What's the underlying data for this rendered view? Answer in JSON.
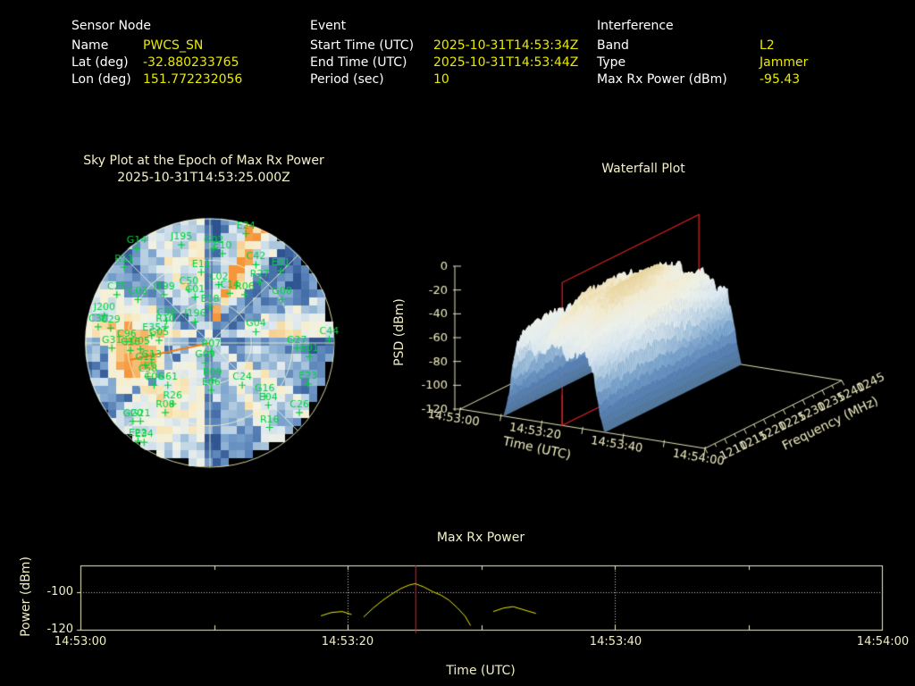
{
  "colors": {
    "background": "#000000",
    "header_label": "#ffffff",
    "header_value": "#e9e900",
    "plot_text": "#efedc2",
    "axis_line": "#efedc2",
    "data_line": "#e9e900",
    "marker_red": "#e02020",
    "satellite_green": "#00d23c",
    "pointer_orange": "#ee7d18",
    "grid_dotted_white": "#ffffff"
  },
  "header": {
    "columns": [
      {
        "title": "Sensor Node",
        "rows": [
          {
            "label": "Name",
            "value": "PWCS_SN"
          },
          {
            "label": "Lat (deg)",
            "value": "-32.880233765"
          },
          {
            "label": "Lon (deg)",
            "value": "151.772232056"
          }
        ]
      },
      {
        "title": "Event",
        "rows": [
          {
            "label": "Start Time (UTC)",
            "value": "2025-10-31T14:53:34Z"
          },
          {
            "label": "End Time (UTC)",
            "value": "2025-10-31T14:53:44Z"
          },
          {
            "label": "Period (sec)",
            "value": "10"
          }
        ]
      },
      {
        "title": "Interference",
        "rows": [
          {
            "label": "Band",
            "value": "L2"
          },
          {
            "label": "Type",
            "value": "Jammer"
          },
          {
            "label": "Max Rx Power (dBm)",
            "value": "-95.43"
          }
        ]
      }
    ]
  },
  "chart_data": [
    {
      "type": "heatmap",
      "subtype": "polar-sky-heatmap",
      "title": "Sky Plot at the Epoch of Max Rx Power",
      "subtitle": "2025-10-31T14:53:25.000Z",
      "elevation_rings_frac": [
        0.3333,
        0.6667,
        1.0
      ],
      "azimuth_spokes_deg_step": 45,
      "hotspot": {
        "azimuth_deg": 256,
        "radius_frac": 0.58
      },
      "pointer_line": {
        "azimuth_deg": 258,
        "radius_frac": 0.66
      },
      "satellites": [
        {
          "id": "E24",
          "x": 0.29,
          "y": -0.88
        },
        {
          "id": "J195",
          "x": -0.23,
          "y": -0.79
        },
        {
          "id": "G02",
          "x": 0.03,
          "y": -0.76
        },
        {
          "id": "E10",
          "x": 0.1,
          "y": -0.72
        },
        {
          "id": "G14",
          "x": -0.59,
          "y": -0.76
        },
        {
          "id": "R11",
          "x": -0.69,
          "y": -0.61
        },
        {
          "id": "C42",
          "x": 0.37,
          "y": -0.63
        },
        {
          "id": "E31",
          "x": 0.57,
          "y": -0.58
        },
        {
          "id": "E11",
          "x": -0.07,
          "y": -0.57
        },
        {
          "id": "R27",
          "x": 0.4,
          "y": -0.49
        },
        {
          "id": "C25",
          "x": -0.75,
          "y": -0.39
        },
        {
          "id": "C03",
          "x": -0.58,
          "y": -0.35
        },
        {
          "id": "J199",
          "x": -0.37,
          "y": -0.39
        },
        {
          "id": "C50",
          "x": -0.17,
          "y": -0.43
        },
        {
          "id": "C01",
          "x": -0.12,
          "y": -0.37
        },
        {
          "id": "C02",
          "x": 0.07,
          "y": -0.47
        },
        {
          "id": "C14",
          "x": 0.16,
          "y": -0.4
        },
        {
          "id": "R06",
          "x": 0.28,
          "y": -0.39
        },
        {
          "id": "G08",
          "x": 0.58,
          "y": -0.35
        },
        {
          "id": "E18",
          "x": 0.0,
          "y": -0.29
        },
        {
          "id": "J200",
          "x": -0.85,
          "y": -0.22
        },
        {
          "id": "C30",
          "x": -0.9,
          "y": -0.13
        },
        {
          "id": "C29",
          "x": -0.8,
          "y": -0.12
        },
        {
          "id": "C38",
          "x": -0.35,
          "y": -0.18
        },
        {
          "id": "R10",
          "x": -0.36,
          "y": -0.13
        },
        {
          "id": "J196",
          "x": -0.12,
          "y": -0.17
        },
        {
          "id": "G04",
          "x": 0.37,
          "y": -0.09
        },
        {
          "id": "C44",
          "x": 0.96,
          "y": -0.03
        },
        {
          "id": "E35",
          "x": -0.47,
          "y": -0.06
        },
        {
          "id": "G05",
          "x": -0.41,
          "y": -0.02
        },
        {
          "id": "C96",
          "x": -0.67,
          "y": -0.01
        },
        {
          "id": "G31",
          "x": -0.79,
          "y": 0.04
        },
        {
          "id": "G27",
          "x": 0.7,
          "y": 0.04
        },
        {
          "id": "E01",
          "x": 0.8,
          "y": 0.11
        },
        {
          "id": "R07",
          "x": 0.01,
          "y": 0.07
        },
        {
          "id": "G09",
          "x": -0.04,
          "y": 0.16
        },
        {
          "id": "C05",
          "x": -0.56,
          "y": 0.05
        },
        {
          "id": "C16",
          "x": -0.64,
          "y": 0.06
        },
        {
          "id": "G13",
          "x": -0.47,
          "y": 0.16
        },
        {
          "id": "G12",
          "x": -0.52,
          "y": 0.18
        },
        {
          "id": "C58",
          "x": -0.5,
          "y": 0.27
        },
        {
          "id": "C06",
          "x": -0.45,
          "y": 0.34
        },
        {
          "id": "G61",
          "x": -0.34,
          "y": 0.34
        },
        {
          "id": "R09",
          "x": 0.02,
          "y": 0.3
        },
        {
          "id": "E06",
          "x": 0.01,
          "y": 0.38
        },
        {
          "id": "C24",
          "x": 0.26,
          "y": 0.34
        },
        {
          "id": "E23",
          "x": 0.79,
          "y": 0.33
        },
        {
          "id": "G16",
          "x": 0.44,
          "y": 0.43
        },
        {
          "id": "E04",
          "x": 0.47,
          "y": 0.5
        },
        {
          "id": "R26",
          "x": -0.3,
          "y": 0.49
        },
        {
          "id": "R08",
          "x": -0.36,
          "y": 0.56
        },
        {
          "id": "C26",
          "x": 0.72,
          "y": 0.56
        },
        {
          "id": "G20",
          "x": -0.62,
          "y": 0.63
        },
        {
          "id": "G21",
          "x": -0.56,
          "y": 0.63
        },
        {
          "id": "R16",
          "x": 0.48,
          "y": 0.68
        },
        {
          "id": "E22",
          "x": -0.58,
          "y": 0.79
        },
        {
          "id": "E34",
          "x": -0.53,
          "y": 0.8
        }
      ]
    },
    {
      "type": "surface",
      "title": "Waterfall Plot",
      "zlabel": "PSD (dBm)",
      "ztick_labels": [
        "0",
        "-20",
        "-40",
        "-60",
        "-80",
        "-100",
        "-120"
      ],
      "zlim": [
        -120,
        0
      ],
      "time_label": "Time (UTC)",
      "time_tick_labels": [
        "14:53:00",
        "14:53:20",
        "14:53:40",
        "14:54:00"
      ],
      "time_span_sec": 60,
      "freq_label": "Frequency (MHz)",
      "freq_tick_labels": [
        "1210",
        "1215",
        "1220",
        "1225",
        "1230",
        "1235",
        "1240",
        "1245"
      ],
      "freq_lim_mhz": [
        1210,
        1245
      ],
      "signal": {
        "time_onset_sec": 11,
        "time_end_sec": 35,
        "peak_psd_dbm": -28,
        "floor_psd_dbm": -118
      },
      "cursor_plane_time_sec": 25
    },
    {
      "type": "line",
      "title": "Max Rx Power",
      "xlabel": "Time (UTC)",
      "ylabel": "Power (dBm)",
      "xtick_labels": [
        "14:53:00",
        "14:53:20",
        "14:53:40",
        "14:54:00"
      ],
      "ytick_labels": [
        "-100",
        "-120"
      ],
      "xlim_sec": [
        0,
        60
      ],
      "ylim_dbm": [
        -120,
        -85.7
      ],
      "grid_dotted": {
        "y_dbm": [
          -100
        ],
        "x_sec": [
          20,
          40
        ]
      },
      "event_marker_sec": 25.07,
      "max_power_dbm": -95.43,
      "segments_sec_dbm": [
        [
          [
            18.0,
            -112.6
          ],
          [
            18.8,
            -110.8
          ],
          [
            19.6,
            -110.3
          ],
          [
            20.3,
            -111.9
          ]
        ],
        [
          [
            21.2,
            -113.2
          ],
          [
            21.9,
            -108.5
          ],
          [
            22.6,
            -104.5
          ],
          [
            23.3,
            -101.0
          ],
          [
            24.0,
            -98.0
          ],
          [
            24.6,
            -96.2
          ],
          [
            25.07,
            -95.43
          ],
          [
            25.7,
            -97.2
          ],
          [
            26.4,
            -99.8
          ],
          [
            27.0,
            -101.6
          ],
          [
            27.6,
            -104.3
          ],
          [
            28.2,
            -108.2
          ],
          [
            28.8,
            -112.8
          ],
          [
            29.2,
            -117.8
          ]
        ],
        [
          [
            30.9,
            -110.3
          ],
          [
            31.7,
            -108.4
          ],
          [
            32.4,
            -107.7
          ],
          [
            33.1,
            -109.2
          ],
          [
            34.1,
            -111.3
          ]
        ]
      ]
    }
  ]
}
